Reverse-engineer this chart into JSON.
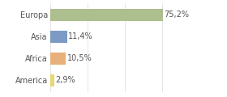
{
  "categories": [
    "Europa",
    "Asia",
    "Africa",
    "America"
  ],
  "values": [
    75.2,
    11.4,
    10.5,
    2.9
  ],
  "labels": [
    "75,2%",
    "11,4%",
    "10,5%",
    "2,9%"
  ],
  "bar_colors": [
    "#adbf8e",
    "#7b9bc4",
    "#e8b07a",
    "#e8d870"
  ],
  "background_color": "#ffffff",
  "xlim": [
    0,
    100
  ],
  "bar_height": 0.55,
  "label_fontsize": 7,
  "category_fontsize": 7,
  "grid_color": "#e0e0e0",
  "text_color": "#555555"
}
